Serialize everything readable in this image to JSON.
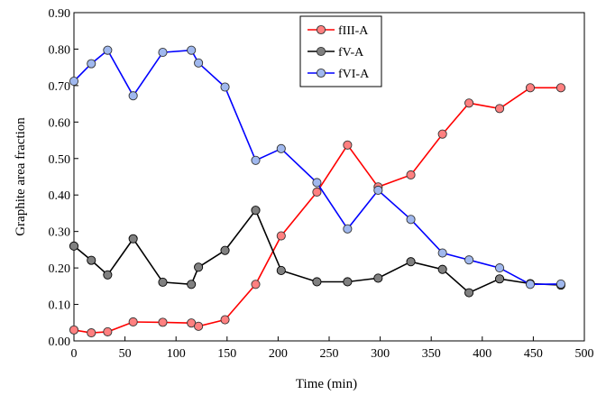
{
  "chart_data": {
    "type": "line",
    "title": "",
    "xlabel": "Time (min)",
    "ylabel": "Graphite area fraction",
    "xlim": [
      0,
      500
    ],
    "ylim": [
      0,
      0.9
    ],
    "xticks": [
      0,
      50,
      100,
      150,
      200,
      250,
      300,
      350,
      400,
      450,
      500
    ],
    "yticks": [
      0,
      0.1,
      0.2,
      0.3,
      0.4,
      0.5,
      0.6,
      0.7,
      0.8,
      0.9
    ],
    "xtick_labels": [
      "0",
      "50",
      "100",
      "150",
      "200",
      "250",
      "300",
      "350",
      "400",
      "450",
      "500"
    ],
    "ytick_labels": [
      "0.00",
      "0.10",
      "0.20",
      "0.30",
      "0.40",
      "0.50",
      "0.60",
      "0.70",
      "0.80",
      "0.90"
    ],
    "grid": false,
    "legend_position": "top-center",
    "series": [
      {
        "name": "fIII-A",
        "line_color": "#ff0000",
        "marker_fill": "#ff8080",
        "x": [
          0,
          17,
          33,
          58,
          87,
          115,
          122,
          148,
          178,
          203,
          238,
          268,
          298,
          330,
          361,
          387,
          417,
          447,
          477
        ],
        "y": [
          0.03,
          0.022,
          0.025,
          0.052,
          0.051,
          0.049,
          0.04,
          0.058,
          0.155,
          0.288,
          0.408,
          0.537,
          0.422,
          0.455,
          0.567,
          0.652,
          0.637,
          0.694,
          0.694
        ]
      },
      {
        "name": "fV-A",
        "line_color": "#000000",
        "marker_fill": "#808080",
        "x": [
          0,
          17,
          33,
          58,
          87,
          115,
          122,
          148,
          178,
          203,
          238,
          268,
          298,
          330,
          361,
          387,
          417,
          447,
          477
        ],
        "y": [
          0.26,
          0.221,
          0.181,
          0.28,
          0.161,
          0.155,
          0.202,
          0.248,
          0.358,
          0.193,
          0.162,
          0.162,
          0.172,
          0.217,
          0.196,
          0.132,
          0.17,
          0.157,
          0.153
        ]
      },
      {
        "name": "fVI-A",
        "line_color": "#0000ff",
        "marker_fill": "#a0b8ee",
        "x": [
          0,
          17,
          33,
          58,
          87,
          115,
          122,
          148,
          178,
          203,
          238,
          268,
          298,
          330,
          361,
          387,
          417,
          447,
          477
        ],
        "y": [
          0.712,
          0.76,
          0.797,
          0.672,
          0.791,
          0.797,
          0.762,
          0.696,
          0.495,
          0.527,
          0.434,
          0.307,
          0.413,
          0.333,
          0.241,
          0.222,
          0.2,
          0.155,
          0.156
        ]
      }
    ]
  }
}
